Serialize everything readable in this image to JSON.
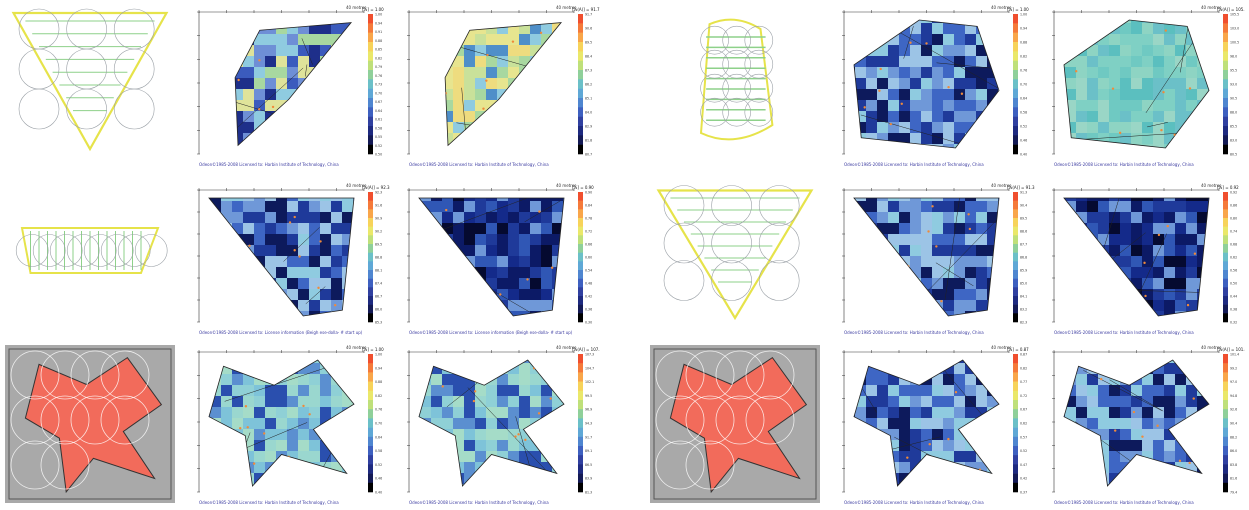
{
  "sets": [
    {
      "id": "left",
      "rows": [
        {
          "plan": {
            "type": "triangle-plan",
            "bg": "#ffffff"
          },
          "maps": [
            {
              "value_label": "[%] = 1.00",
              "tick_labels": [
                "1.00",
                "0.94",
                "0.91",
                "0.88",
                "0.85",
                "0.82",
                "0.79",
                "0.76",
                "0.73",
                "0.70",
                "0.67",
                "0.64",
                "0.61",
                "0.58",
                "0.55",
                "0.52",
                "0.50"
              ],
              "credit": "Odeon©1985-2008 Licensed to: Harbin Institute of Technology, China",
              "palette": "mixed",
              "shape": "trap-top"
            },
            {
              "value_label": "[%(A)] = 91.7",
              "tick_labels": [
                "91.7",
                "90.6",
                "89.5",
                "88.4",
                "87.3",
                "86.2",
                "85.1",
                "84.0",
                "82.9",
                "81.8",
                "80.7"
              ],
              "credit": "Odeon©1985-2008 Licensed to: Harbin Institute of Technology, China",
              "palette": "warm",
              "shape": "trap-top"
            }
          ]
        },
        {
          "plan": {
            "type": "rect-plan",
            "bg": "#ffffff"
          },
          "maps": [
            {
              "value_label": "[%(A)] = 92.3",
              "tick_labels": [
                "92.3",
                "91.6",
                "90.9",
                "90.2",
                "89.5",
                "88.8",
                "88.1",
                "87.4",
                "86.7",
                "86.0",
                "85.3"
              ],
              "credit": "Odeon©1985-2008 Licensed to: License information (Beigh ese-dolla- # start up)",
              "palette": "blue",
              "shape": "tri-down"
            },
            {
              "value_label": "[%] = 0.90",
              "tick_labels": [
                "0.90",
                "0.84",
                "0.78",
                "0.72",
                "0.66",
                "0.60",
                "0.54",
                "0.48",
                "0.42",
                "0.36",
                "0.30"
              ],
              "credit": "Odeon©1985-2008 Licensed to: License information (Beigh ese-dolla- # start up)",
              "palette": "deep",
              "shape": "tri-down"
            }
          ]
        },
        {
          "plan": {
            "type": "star-plan",
            "bg": "#a9a9a9"
          },
          "maps": [
            {
              "value_label": "[%] = 1.00",
              "tick_labels": [
                "1.00",
                "0.94",
                "0.88",
                "0.82",
                "0.76",
                "0.70",
                "0.64",
                "0.58",
                "0.52",
                "0.46",
                "0.40"
              ],
              "credit": "Odeon©1985-2008 Licensed to: Harbin Institute of Technology, China",
              "palette": "cyan",
              "shape": "star"
            },
            {
              "value_label": "[%(A)] = 107.3",
              "tick_labels": [
                "107.3",
                "104.7",
                "102.1",
                "99.5",
                "96.9",
                "94.3",
                "91.7",
                "89.1",
                "86.5",
                "83.9",
                "81.3"
              ],
              "credit": "Odeon©1985-2008 Licensed to: Harbin Institute of Technology, China",
              "palette": "cyan",
              "shape": "star"
            }
          ]
        }
      ]
    },
    {
      "id": "right",
      "rows": [
        {
          "plan": {
            "type": "oval-plan",
            "bg": "#ffffff"
          },
          "maps": [
            {
              "value_label": "[%] = 1.00",
              "tick_labels": [
                "1.00",
                "0.94",
                "0.88",
                "0.82",
                "0.76",
                "0.70",
                "0.64",
                "0.58",
                "0.52",
                "0.46",
                "0.40"
              ],
              "credit": "Odeon©1985-2008 Licensed to: Harbin Institute of Technology, China",
              "palette": "blue",
              "shape": "hex"
            },
            {
              "value_label": "[%(A)] = 105.5",
              "tick_labels": [
                "105.5",
                "103.0",
                "100.5",
                "98.0",
                "95.5",
                "93.0",
                "90.5",
                "88.0",
                "85.5",
                "83.0",
                "80.5"
              ],
              "credit": "Odeon©1985-2008 Licensed to: Harbin Institute of Technology, China",
              "palette": "teal",
              "shape": "hex"
            }
          ]
        },
        {
          "plan": {
            "type": "tri-plan",
            "bg": "#ffffff"
          },
          "maps": [
            {
              "value_label": "[%(A)] = 91.3",
              "tick_labels": [
                "91.3",
                "90.4",
                "89.5",
                "88.6",
                "87.7",
                "86.8",
                "85.9",
                "85.0",
                "84.1",
                "83.2",
                "82.3"
              ],
              "credit": "Odeon©1985-2008 Licensed to: Harbin Institute of Technology, China",
              "palette": "blue",
              "shape": "tri-down"
            },
            {
              "value_label": "[%] = 0.92",
              "tick_labels": [
                "0.92",
                "0.86",
                "0.80",
                "0.74",
                "0.68",
                "0.62",
                "0.56",
                "0.50",
                "0.44",
                "0.38",
                "0.32"
              ],
              "credit": "Odeon©1985-2008 Licensed to: Harbin Institute of Technology, China",
              "palette": "deep",
              "shape": "tri-down"
            }
          ]
        },
        {
          "plan": {
            "type": "star-plan",
            "bg": "#a9a9a9"
          },
          "maps": [
            {
              "value_label": "[%] = 0.87",
              "tick_labels": [
                "0.87",
                "0.82",
                "0.77",
                "0.72",
                "0.67",
                "0.62",
                "0.57",
                "0.52",
                "0.47",
                "0.42",
                "0.37"
              ],
              "credit": "Odeon©1985-2008 Licensed to: Harbin Institute of Technology, China",
              "palette": "blue",
              "shape": "star"
            },
            {
              "value_label": "[%(A)] = 101.4",
              "tick_labels": [
                "101.4",
                "99.2",
                "97.0",
                "94.8",
                "92.6",
                "90.4",
                "88.2",
                "86.0",
                "83.8",
                "81.6",
                "79.4"
              ],
              "credit": "Odeon©1985-2008 Licensed to: Harbin Institute of Technology, China",
              "palette": "blue",
              "shape": "star"
            }
          ]
        }
      ]
    }
  ],
  "axis_label": "40 metres",
  "colors": {
    "plan_yellow": "#e6e34a",
    "plan_green": "#8ed18a",
    "plan_red": "#f26b5b",
    "plan_circle": "#9aa0a6",
    "grid_line": "#222222"
  }
}
